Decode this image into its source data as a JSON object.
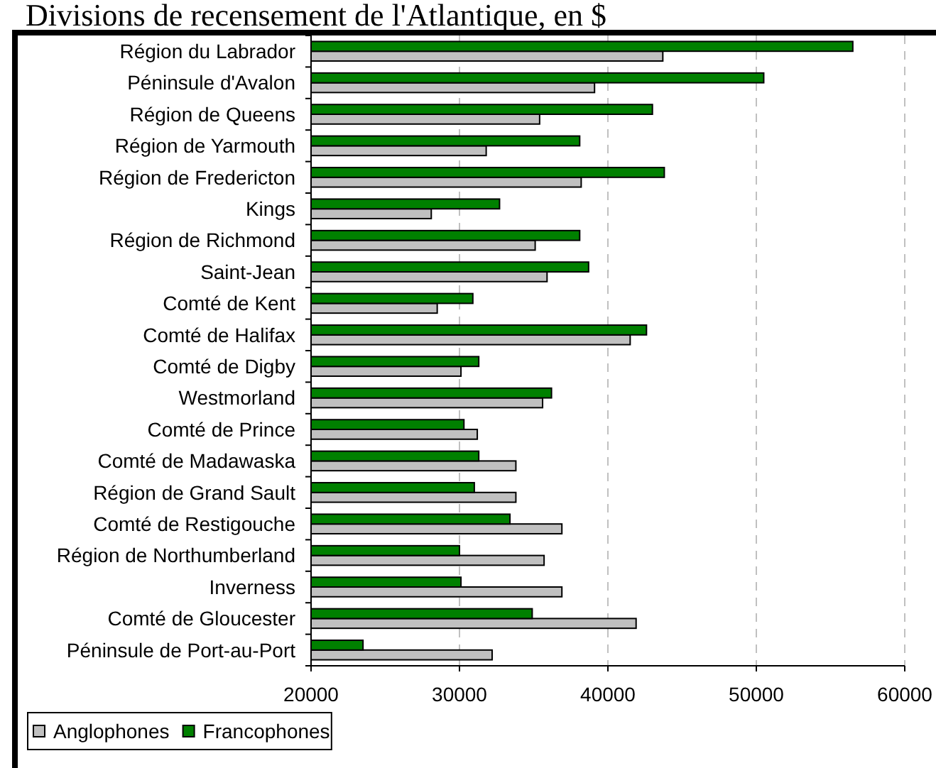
{
  "chart_data": {
    "type": "bar",
    "orientation": "horizontal",
    "title": "Divisions de recensement de l'Atlantique, en $",
    "categories": [
      "Région du Labrador",
      "Péninsule d'Avalon",
      "Région de Queens",
      "Région de Yarmouth",
      "Région de Fredericton",
      "Kings",
      "Région de Richmond",
      "Saint-Jean",
      "Comté de Kent",
      "Comté de Halifax",
      "Comté de Digby",
      "Westmorland",
      "Comté de Prince",
      "Comté de Madawaska",
      "Région de Grand Sault",
      "Comté de Restigouche",
      "Région de Northumberland",
      "Inverness",
      "Comté de Gloucester",
      "Péninsule de Port-au-Port"
    ],
    "series": [
      {
        "name": "Anglophones",
        "color": "#c0c0c0",
        "values": [
          43700,
          39100,
          35400,
          31800,
          38200,
          28100,
          35100,
          35900,
          28500,
          41500,
          30100,
          35600,
          31200,
          33800,
          33800,
          36900,
          35700,
          36900,
          41900,
          32200
        ]
      },
      {
        "name": "Francophones",
        "color": "#008000",
        "values": [
          56500,
          50500,
          43000,
          38100,
          43800,
          32700,
          38100,
          38700,
          30900,
          42600,
          31300,
          36200,
          30300,
          31300,
          31000,
          33400,
          30000,
          30100,
          34900,
          23500
        ]
      }
    ],
    "xlim": [
      20000,
      60000
    ],
    "xticks": [
      20000,
      30000,
      40000,
      50000,
      60000
    ],
    "grid": "x",
    "legend": "bottom left"
  }
}
